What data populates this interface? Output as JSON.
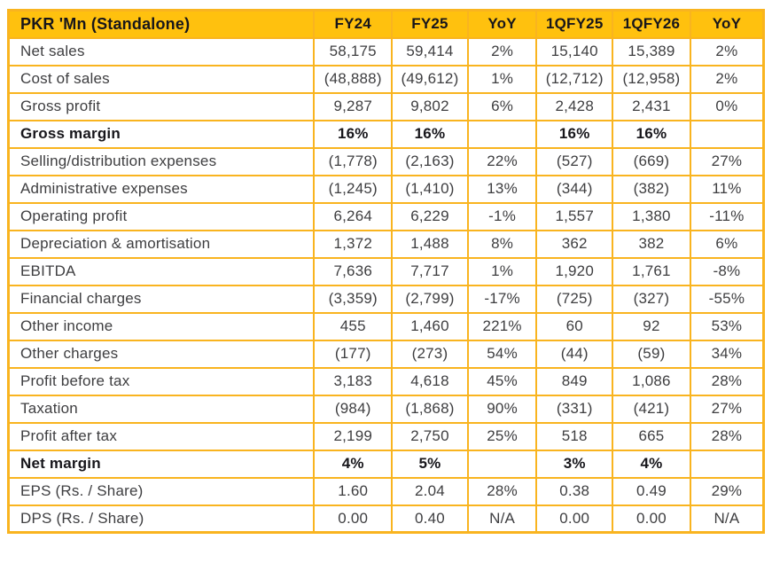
{
  "colors": {
    "header_bg": "#FFC10E",
    "grid_border": "#F9B41F",
    "header_text": "#17161B",
    "body_text": "#3E3E40"
  },
  "chart_data": {
    "type": "table",
    "title": "PKR 'Mn (Standalone)",
    "header": [
      "PKR 'Mn (Standalone)",
      "FY24",
      "FY25",
      "YoY",
      "1QFY25",
      "1QFY26",
      "YoY"
    ],
    "rows": [
      {
        "label": "Net sales",
        "values": [
          "58,175",
          "59,414",
          "2%",
          "15,140",
          "15,389",
          "2%"
        ],
        "bold": false
      },
      {
        "label": "Cost of sales",
        "values": [
          "(48,888)",
          "(49,612)",
          "1%",
          "(12,712)",
          "(12,958)",
          "2%"
        ],
        "bold": false
      },
      {
        "label": "Gross profit",
        "values": [
          "9,287",
          "9,802",
          "6%",
          "2,428",
          "2,431",
          "0%"
        ],
        "bold": false
      },
      {
        "label": "Gross margin",
        "values": [
          "16%",
          "16%",
          "",
          "16%",
          "16%",
          ""
        ],
        "bold": true
      },
      {
        "label": "Selling/distribution expenses",
        "values": [
          "(1,778)",
          "(2,163)",
          "22%",
          "(527)",
          "(669)",
          "27%"
        ],
        "bold": false
      },
      {
        "label": "Administrative expenses",
        "values": [
          "(1,245)",
          "(1,410)",
          "13%",
          "(344)",
          "(382)",
          "11%"
        ],
        "bold": false
      },
      {
        "label": "Operating profit",
        "values": [
          "6,264",
          "6,229",
          "-1%",
          "1,557",
          "1,380",
          "-11%"
        ],
        "bold": false
      },
      {
        "label": "Depreciation & amortisation",
        "values": [
          "1,372",
          "1,488",
          "8%",
          "362",
          "382",
          "6%"
        ],
        "bold": false
      },
      {
        "label": "EBITDA",
        "values": [
          "7,636",
          "7,717",
          "1%",
          "1,920",
          "1,761",
          "-8%"
        ],
        "bold": false
      },
      {
        "label": "Financial charges",
        "values": [
          "(3,359)",
          "(2,799)",
          "-17%",
          "(725)",
          "(327)",
          "-55%"
        ],
        "bold": false
      },
      {
        "label": "Other income",
        "values": [
          "455",
          "1,460",
          "221%",
          "60",
          "92",
          "53%"
        ],
        "bold": false
      },
      {
        "label": "Other charges",
        "values": [
          "(177)",
          "(273)",
          "54%",
          "(44)",
          "(59)",
          "34%"
        ],
        "bold": false
      },
      {
        "label": "Profit before tax",
        "values": [
          "3,183",
          "4,618",
          "45%",
          "849",
          "1,086",
          "28%"
        ],
        "bold": false
      },
      {
        "label": "Taxation",
        "values": [
          "(984)",
          "(1,868)",
          "90%",
          "(331)",
          "(421)",
          "27%"
        ],
        "bold": false
      },
      {
        "label": "Profit after tax",
        "values": [
          "2,199",
          "2,750",
          "25%",
          "518",
          "665",
          "28%"
        ],
        "bold": false
      },
      {
        "label": "Net margin",
        "values": [
          "4%",
          "5%",
          "",
          "3%",
          "4%",
          ""
        ],
        "bold": true
      },
      {
        "label": "EPS (Rs. / Share)",
        "values": [
          "1.60",
          "2.04",
          "28%",
          "0.38",
          "0.49",
          "29%"
        ],
        "bold": false
      },
      {
        "label": "DPS (Rs. / Share)",
        "values": [
          "0.00",
          "0.40",
          "N/A",
          "0.00",
          "0.00",
          "N/A"
        ],
        "bold": false
      }
    ]
  }
}
